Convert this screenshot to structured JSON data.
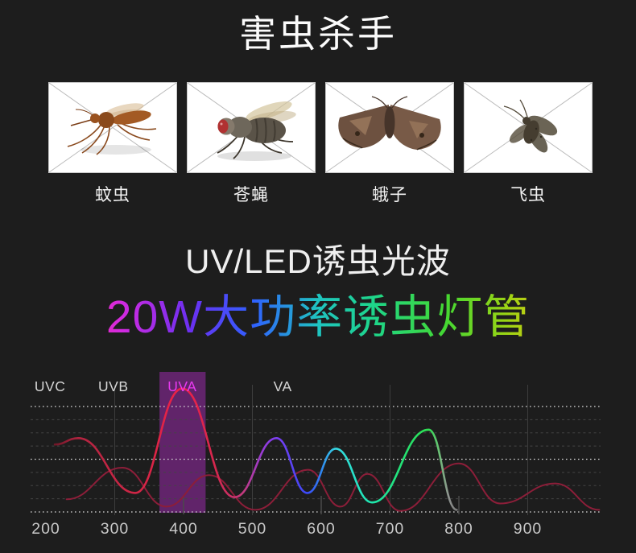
{
  "page": {
    "background": "#1d1d1d"
  },
  "title": "害虫杀手",
  "pests": {
    "items": [
      {
        "label": "蚊虫",
        "icon": "mosquito"
      },
      {
        "label": "苍蝇",
        "icon": "fly"
      },
      {
        "label": "蛾子",
        "icon": "moth"
      },
      {
        "label": "飞虫",
        "icon": "flying-insect"
      }
    ]
  },
  "headings": {
    "sub": "UV/LED诱虫光波",
    "rainbow": "20W大功率诱虫灯管",
    "rainbow_colors": [
      "#ff1a1a",
      "#ff2e96",
      "#d42ae0",
      "#6a30f0",
      "#2f62ff",
      "#1fc4c0",
      "#1ed688",
      "#44d832",
      "#9ed414",
      "#e8c414",
      "#ff7a10",
      "#ff2a10"
    ],
    "rainbow_stops_pct": [
      0,
      9,
      19,
      30,
      40,
      50,
      59,
      70,
      80,
      88,
      95,
      100
    ]
  },
  "chart_data": {
    "type": "line",
    "title": "",
    "xlabel": "",
    "ylabel": "",
    "x_range": [
      200,
      1005
    ],
    "ylim": [
      0,
      120
    ],
    "grid": {
      "h_major": [
        0,
        50,
        100
      ],
      "h_minor": [
        12.5,
        25,
        37.5,
        62.5,
        75,
        87.5
      ],
      "v_full": [
        300,
        500,
        700,
        900
      ],
      "v_tick": [
        400,
        600,
        800
      ]
    },
    "x_ticks": [
      "200",
      "300",
      "400",
      "500",
      "600",
      "700",
      "800",
      "900"
    ],
    "x_tick_values": [
      200,
      300,
      400,
      500,
      600,
      700,
      800,
      900
    ],
    "zones": [
      {
        "label": "UVC",
        "center": 206,
        "color": "#d6d6d6"
      },
      {
        "label": "UVB",
        "center": 298,
        "color": "#d6d6d6"
      },
      {
        "label": "UVA",
        "center": 398,
        "color": "#e83af0"
      },
      {
        "label": "VA",
        "center": 544,
        "color": "#d6d6d6"
      }
    ],
    "uva_band": {
      "from": 365,
      "to": 432,
      "color": "#a12cb2",
      "opacity": 0.52
    },
    "series": [
      {
        "name": "lamp-emission-spectrum",
        "style": "rainbow-gradient",
        "points": [
          [
            213,
            64
          ],
          [
            247,
            70
          ],
          [
            330,
            18
          ],
          [
            398,
            117
          ],
          [
            474,
            14
          ],
          [
            535,
            70
          ],
          [
            580,
            18
          ],
          [
            621,
            60
          ],
          [
            674,
            9
          ],
          [
            756,
            78
          ],
          [
            797,
            2
          ]
        ]
      },
      {
        "name": "insect-response-curve",
        "color": "#8c1e39",
        "points": [
          [
            230,
            12
          ],
          [
            311,
            42
          ],
          [
            375,
            5
          ],
          [
            437,
            35
          ],
          [
            504,
            2
          ],
          [
            581,
            40
          ],
          [
            628,
            5
          ],
          [
            667,
            36
          ],
          [
            715,
            1
          ],
          [
            800,
            46
          ],
          [
            860,
            8
          ],
          [
            940,
            27
          ],
          [
            1004,
            2
          ]
        ]
      }
    ],
    "rainbow_stops": [
      [
        0,
        "#701728"
      ],
      [
        0.058,
        "#b22440"
      ],
      [
        0.2,
        "#cf2646"
      ],
      [
        0.317,
        "#ee2147"
      ],
      [
        0.406,
        "#d3284f"
      ],
      [
        0.469,
        "#c23a80"
      ],
      [
        0.512,
        "#9b3bd0"
      ],
      [
        0.551,
        "#7c3ef2"
      ],
      [
        0.628,
        "#3a49f7"
      ],
      [
        0.663,
        "#2f86f0"
      ],
      [
        0.7,
        "#37dbe3"
      ],
      [
        0.752,
        "#25e2c4"
      ],
      [
        0.789,
        "#1fe6ae"
      ],
      [
        0.861,
        "#23e276"
      ],
      [
        0.93,
        "#2fdf52"
      ],
      [
        0.957,
        "#6fbf78"
      ],
      [
        0.979,
        "#8f9390"
      ],
      [
        1,
        "#7a7a7a"
      ]
    ],
    "colors": {
      "grid_major": "#d9d9d9",
      "grid_minor": "#454545",
      "grid_vertical": "#3d3d3d",
      "tick_label": "#c9c9c9"
    }
  }
}
